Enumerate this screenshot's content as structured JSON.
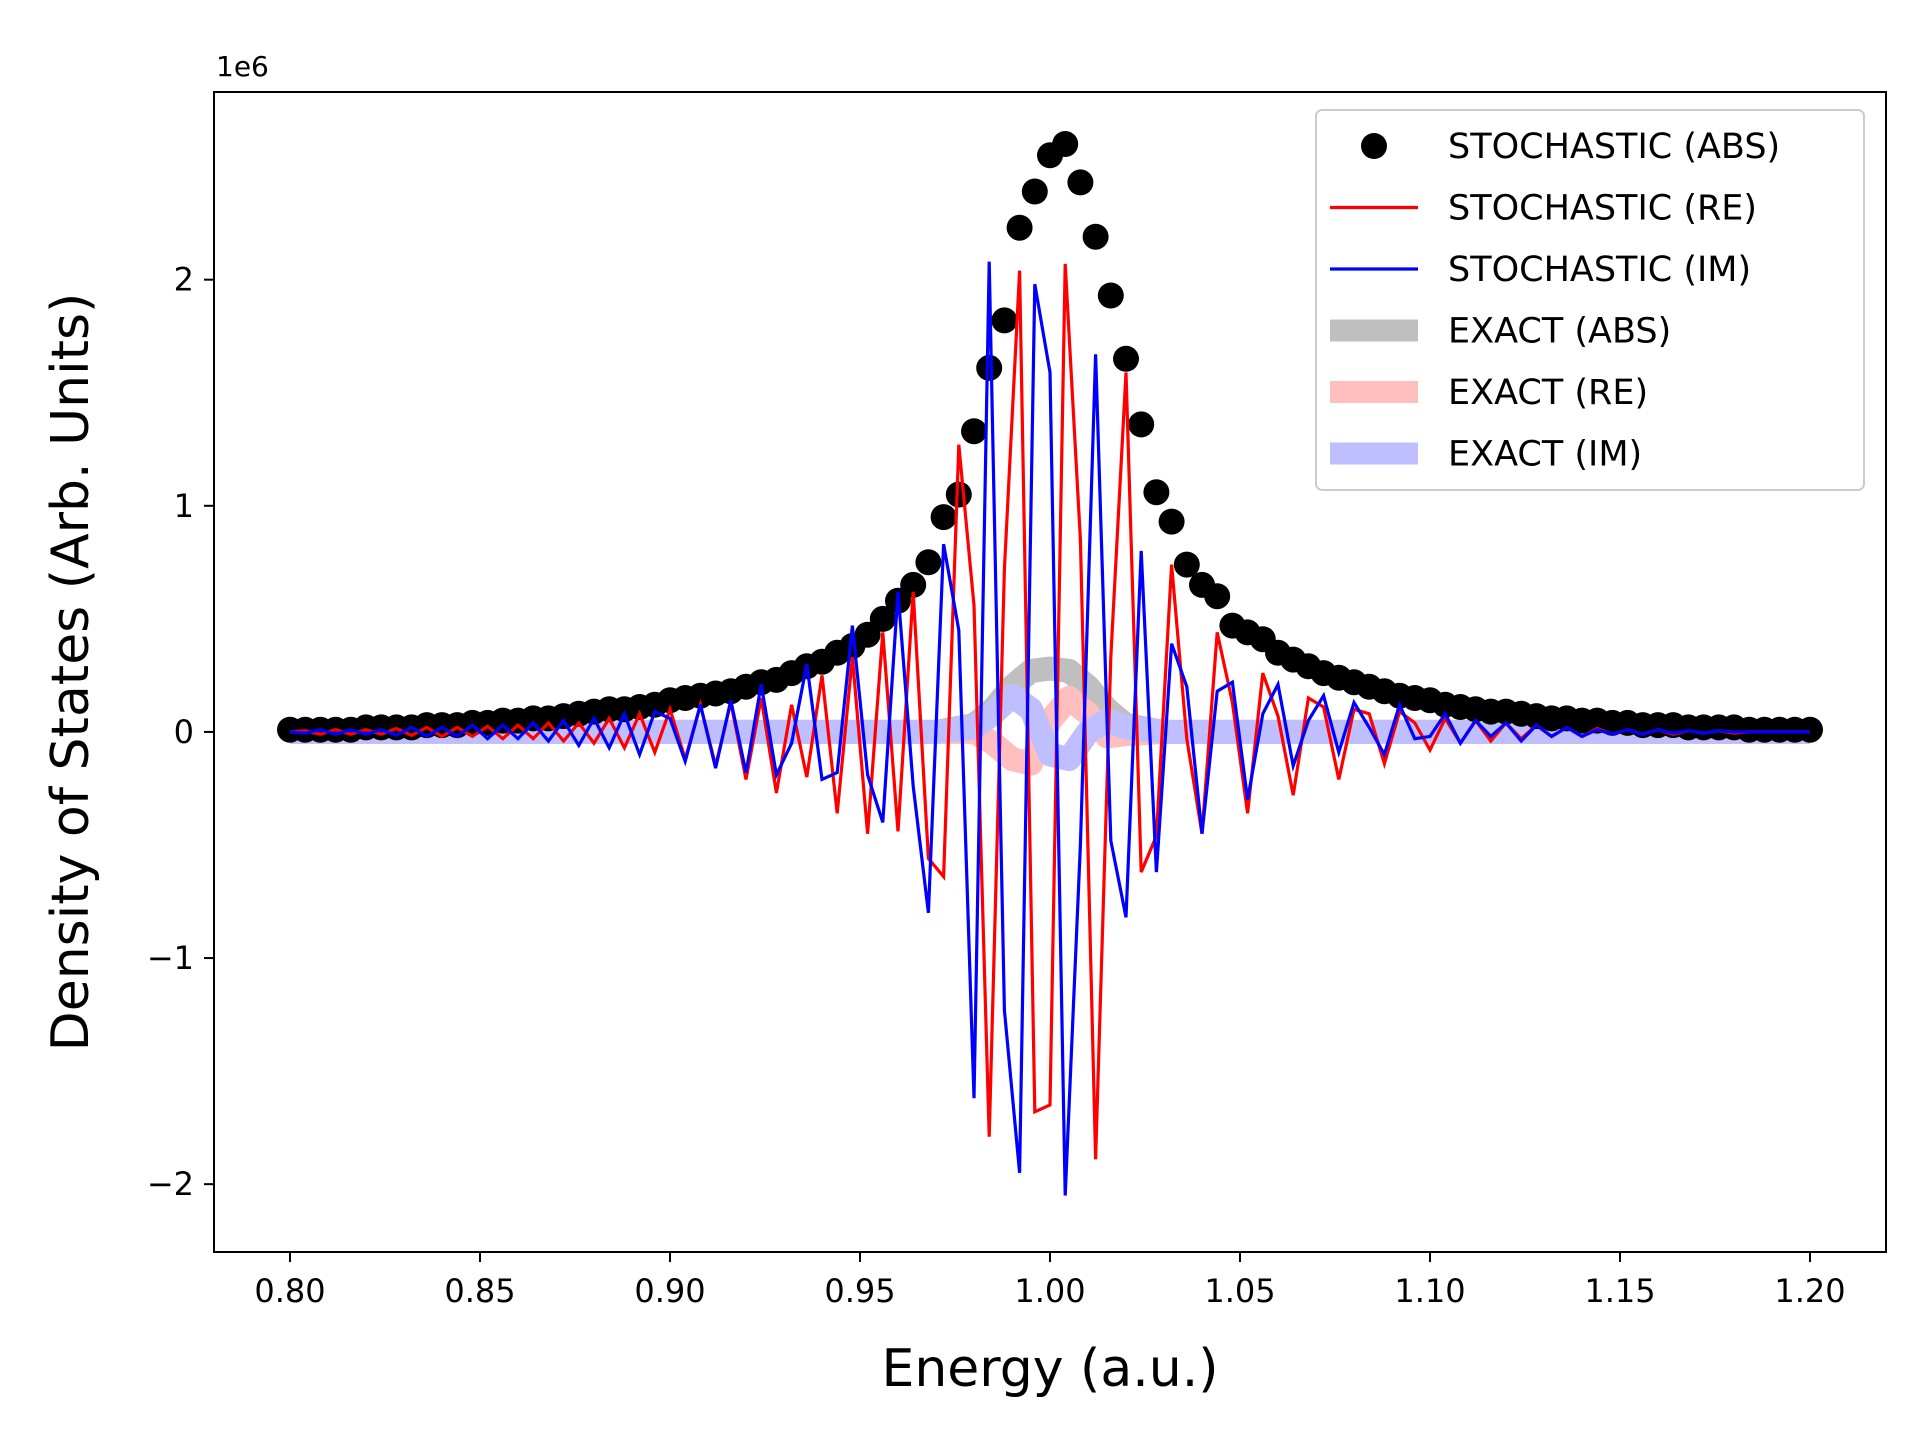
{
  "chart_data": {
    "type": "line",
    "xlabel": "Energy (a.u.)",
    "ylabel": "Density of States (Arb. Units)",
    "y_scale_label": "1e6",
    "xlim": [
      0.78,
      1.22
    ],
    "ylim": [
      -2.3,
      2.83
    ],
    "x_ticks": [
      0.8,
      0.85,
      0.9,
      0.95,
      1.0,
      1.05,
      1.1,
      1.15,
      1.2
    ],
    "x_tick_labels": [
      "0.80",
      "0.85",
      "0.90",
      "0.95",
      "1.00",
      "1.05",
      "1.10",
      "1.15",
      "1.20"
    ],
    "y_ticks": [
      -2,
      -1,
      0,
      1,
      2
    ],
    "y_tick_labels": [
      "−2",
      "−1",
      "0",
      "1",
      "2"
    ],
    "grid": false,
    "legend_position": "top-right",
    "series": [
      {
        "name": "STOCHASTIC (ABS)",
        "style": "markers",
        "color": "#000000",
        "x": [
          0.8,
          0.804,
          0.808,
          0.812,
          0.816,
          0.82,
          0.824,
          0.828,
          0.832,
          0.836,
          0.84,
          0.844,
          0.848,
          0.852,
          0.856,
          0.86,
          0.864,
          0.868,
          0.872,
          0.876,
          0.88,
          0.884,
          0.888,
          0.892,
          0.896,
          0.9,
          0.904,
          0.908,
          0.912,
          0.916,
          0.92,
          0.924,
          0.928,
          0.932,
          0.936,
          0.94,
          0.944,
          0.948,
          0.952,
          0.956,
          0.96,
          0.964,
          0.968,
          0.972,
          0.976,
          0.98,
          0.984,
          0.988,
          0.992,
          0.996,
          1.0,
          1.004,
          1.008,
          1.012,
          1.016,
          1.02,
          1.024,
          1.028,
          1.032,
          1.036,
          1.04,
          1.044,
          1.048,
          1.052,
          1.056,
          1.06,
          1.064,
          1.068,
          1.072,
          1.076,
          1.08,
          1.084,
          1.088,
          1.092,
          1.096,
          1.1,
          1.104,
          1.108,
          1.112,
          1.116,
          1.12,
          1.124,
          1.128,
          1.132,
          1.136,
          1.14,
          1.144,
          1.148,
          1.152,
          1.156,
          1.16,
          1.164,
          1.168,
          1.172,
          1.176,
          1.18,
          1.184,
          1.188,
          1.192,
          1.196,
          1.2
        ],
        "y": [
          0.01,
          0.01,
          0.01,
          0.01,
          0.01,
          0.02,
          0.02,
          0.02,
          0.02,
          0.03,
          0.03,
          0.03,
          0.04,
          0.04,
          0.05,
          0.05,
          0.06,
          0.06,
          0.07,
          0.08,
          0.09,
          0.1,
          0.1,
          0.11,
          0.12,
          0.14,
          0.15,
          0.16,
          0.17,
          0.18,
          0.2,
          0.22,
          0.23,
          0.26,
          0.29,
          0.31,
          0.35,
          0.38,
          0.43,
          0.5,
          0.58,
          0.65,
          0.75,
          0.95,
          1.05,
          1.33,
          1.61,
          1.82,
          2.23,
          2.39,
          2.55,
          2.6,
          2.43,
          2.19,
          1.93,
          1.65,
          1.36,
          1.06,
          0.93,
          0.74,
          0.65,
          0.6,
          0.47,
          0.44,
          0.41,
          0.35,
          0.32,
          0.29,
          0.26,
          0.24,
          0.22,
          0.2,
          0.18,
          0.16,
          0.15,
          0.14,
          0.12,
          0.11,
          0.1,
          0.09,
          0.09,
          0.08,
          0.07,
          0.06,
          0.06,
          0.05,
          0.05,
          0.04,
          0.04,
          0.03,
          0.03,
          0.03,
          0.02,
          0.02,
          0.02,
          0.02,
          0.01,
          0.01,
          0.01,
          0.01,
          0.01
        ]
      },
      {
        "name": "STOCHASTIC (RE)",
        "style": "line",
        "color": "#ff0000",
        "x": [
          0.8,
          0.804,
          0.808,
          0.812,
          0.816,
          0.82,
          0.824,
          0.828,
          0.832,
          0.836,
          0.84,
          0.844,
          0.848,
          0.852,
          0.856,
          0.86,
          0.864,
          0.868,
          0.872,
          0.876,
          0.88,
          0.884,
          0.888,
          0.892,
          0.896,
          0.9,
          0.904,
          0.908,
          0.912,
          0.916,
          0.92,
          0.924,
          0.928,
          0.932,
          0.936,
          0.94,
          0.944,
          0.948,
          0.952,
          0.956,
          0.96,
          0.964,
          0.968,
          0.972,
          0.976,
          0.98,
          0.984,
          0.988,
          0.992,
          0.996,
          1.0,
          1.004,
          1.008,
          1.012,
          1.016,
          1.02,
          1.024,
          1.028,
          1.032,
          1.036,
          1.04,
          1.044,
          1.048,
          1.052,
          1.056,
          1.06,
          1.064,
          1.068,
          1.072,
          1.076,
          1.08,
          1.084,
          1.088,
          1.092,
          1.096,
          1.1,
          1.104,
          1.108,
          1.112,
          1.116,
          1.12,
          1.124,
          1.128,
          1.132,
          1.136,
          1.14,
          1.144,
          1.148,
          1.152,
          1.156,
          1.16,
          1.164,
          1.168,
          1.172,
          1.176,
          1.18,
          1.184,
          1.188,
          1.192,
          1.196,
          1.2
        ],
        "y": [
          0.0,
          0.005,
          -0.01,
          0.01,
          -0.01,
          0.01,
          -0.01,
          0.015,
          -0.015,
          0.02,
          -0.02,
          0.02,
          -0.02,
          0.025,
          -0.03,
          0.03,
          -0.03,
          0.04,
          -0.04,
          0.04,
          -0.05,
          0.06,
          -0.07,
          0.08,
          -0.09,
          0.1,
          -0.12,
          0.12,
          -0.15,
          0.13,
          -0.21,
          0.15,
          -0.27,
          0.12,
          -0.2,
          0.25,
          -0.36,
          0.33,
          -0.45,
          0.44,
          -0.44,
          0.62,
          -0.56,
          -0.64,
          1.27,
          0.56,
          -1.79,
          0.72,
          2.04,
          -1.68,
          -1.65,
          2.07,
          0.85,
          -1.89,
          0.33,
          1.59,
          -0.62,
          -0.46,
          0.74,
          -0.03,
          -0.45,
          0.44,
          0.13,
          -0.36,
          0.26,
          0.07,
          -0.28,
          0.15,
          0.11,
          -0.21,
          0.1,
          0.08,
          -0.14,
          0.09,
          0.04,
          -0.08,
          0.06,
          -0.05,
          0.05,
          -0.04,
          0.04,
          -0.03,
          0.03,
          -0.02,
          0.02,
          -0.02,
          0.015,
          -0.01,
          0.01,
          -0.01,
          0.01,
          -0.01,
          0.005,
          -0.005,
          0.005,
          -0.005,
          0.0,
          0.0,
          0.0,
          0.0,
          0.0
        ]
      },
      {
        "name": "STOCHASTIC (IM)",
        "style": "line",
        "color": "#0000ff",
        "x": [
          0.8,
          0.804,
          0.808,
          0.812,
          0.816,
          0.82,
          0.824,
          0.828,
          0.832,
          0.836,
          0.84,
          0.844,
          0.848,
          0.852,
          0.856,
          0.86,
          0.864,
          0.868,
          0.872,
          0.876,
          0.88,
          0.884,
          0.888,
          0.892,
          0.896,
          0.9,
          0.904,
          0.908,
          0.912,
          0.916,
          0.92,
          0.924,
          0.928,
          0.932,
          0.936,
          0.94,
          0.944,
          0.948,
          0.952,
          0.956,
          0.96,
          0.964,
          0.968,
          0.972,
          0.976,
          0.98,
          0.984,
          0.988,
          0.992,
          0.996,
          1.0,
          1.004,
          1.008,
          1.012,
          1.016,
          1.02,
          1.024,
          1.028,
          1.032,
          1.036,
          1.04,
          1.044,
          1.048,
          1.052,
          1.056,
          1.06,
          1.064,
          1.068,
          1.072,
          1.076,
          1.08,
          1.084,
          1.088,
          1.092,
          1.096,
          1.1,
          1.104,
          1.108,
          1.112,
          1.116,
          1.12,
          1.124,
          1.128,
          1.132,
          1.136,
          1.14,
          1.144,
          1.148,
          1.152,
          1.156,
          1.16,
          1.164,
          1.168,
          1.172,
          1.176,
          1.18,
          1.184,
          1.188,
          1.192,
          1.196,
          1.2
        ],
        "y": [
          0.0,
          -0.005,
          0.01,
          -0.01,
          0.01,
          -0.01,
          0.01,
          -0.015,
          0.02,
          -0.02,
          0.02,
          -0.02,
          0.03,
          -0.03,
          0.03,
          -0.03,
          0.04,
          -0.04,
          0.05,
          -0.06,
          0.06,
          -0.07,
          0.08,
          -0.1,
          0.09,
          0.06,
          -0.13,
          0.12,
          -0.16,
          0.14,
          -0.18,
          0.21,
          -0.19,
          -0.05,
          0.3,
          -0.21,
          -0.18,
          0.47,
          -0.19,
          -0.4,
          0.62,
          -0.24,
          -0.8,
          0.83,
          0.45,
          -1.62,
          2.08,
          -1.23,
          -1.95,
          1.98,
          1.59,
          -2.05,
          -0.5,
          1.67,
          -0.48,
          -0.82,
          0.8,
          -0.62,
          0.39,
          0.2,
          -0.45,
          0.18,
          0.22,
          -0.3,
          0.08,
          0.21,
          -0.15,
          0.05,
          0.16,
          -0.09,
          0.13,
          0.02,
          -0.1,
          0.12,
          -0.03,
          -0.02,
          0.08,
          -0.05,
          0.05,
          -0.02,
          0.04,
          -0.04,
          0.03,
          -0.02,
          0.02,
          -0.02,
          0.01,
          -0.01,
          0.01,
          -0.01,
          0.01,
          -0.005,
          0.005,
          -0.005,
          0.005,
          0.0,
          0.0,
          0.0,
          0.0,
          0.0,
          0.0
        ]
      },
      {
        "name": "EXACT (ABS)",
        "style": "band",
        "color": "#bfbfbf",
        "x": [
          0.8,
          0.9,
          0.95,
          0.97,
          0.98,
          0.985,
          0.99,
          0.995,
          1.0,
          1.005,
          1.01,
          1.015,
          1.02,
          1.03,
          1.05,
          1.1,
          1.2
        ],
        "y": [
          0.0,
          0.0,
          0.0,
          0.0,
          0.03,
          0.1,
          0.2,
          0.27,
          0.28,
          0.27,
          0.2,
          0.1,
          0.03,
          0.0,
          0.0,
          0.0,
          0.0
        ]
      },
      {
        "name": "EXACT (RE)",
        "style": "band",
        "color": "#ffbfbf",
        "x": [
          0.8,
          0.9,
          0.95,
          0.97,
          0.98,
          0.985,
          0.99,
          0.995,
          1.0,
          1.005,
          1.01,
          1.015,
          1.02,
          1.03,
          1.05,
          1.1,
          1.2
        ],
        "y": [
          0.0,
          0.0,
          0.0,
          0.0,
          0.0,
          -0.05,
          -0.12,
          -0.14,
          0.05,
          0.15,
          0.08,
          -0.02,
          -0.01,
          0.0,
          0.0,
          0.0,
          0.0
        ]
      },
      {
        "name": "EXACT (IM)",
        "style": "band",
        "color": "#bfbfff",
        "x": [
          0.8,
          0.9,
          0.95,
          0.97,
          0.98,
          0.985,
          0.99,
          0.995,
          1.0,
          1.005,
          1.01,
          1.015,
          1.02,
          1.03,
          1.05,
          1.1,
          1.2
        ],
        "y": [
          0.0,
          0.0,
          0.0,
          0.0,
          0.02,
          0.08,
          0.16,
          0.1,
          -0.1,
          -0.12,
          0.0,
          0.05,
          0.02,
          0.0,
          0.0,
          0.0,
          0.0
        ]
      }
    ]
  }
}
